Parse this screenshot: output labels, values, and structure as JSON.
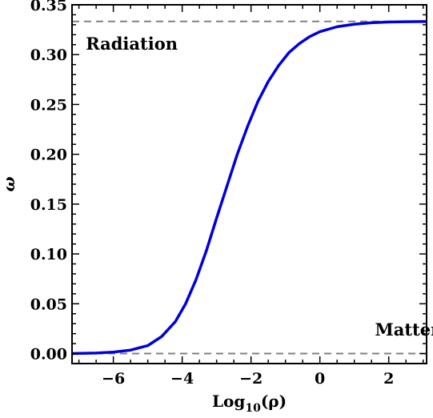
{
  "chart_data": {
    "type": "line",
    "title": "",
    "xlabel": "Log10(ρ)",
    "ylabel": "ω",
    "xlim": [
      -7.2,
      3.1
    ],
    "ylim": [
      -0.01,
      0.35
    ],
    "x_ticks": [
      -6,
      -4,
      -2,
      0,
      2
    ],
    "x_tick_labels": [
      "−6",
      "−4",
      "−2",
      "0",
      "2"
    ],
    "y_ticks": [
      0.0,
      0.05,
      0.1,
      0.15,
      0.2,
      0.25,
      0.3,
      0.35
    ],
    "y_tick_labels": [
      "0.00",
      "0.05",
      "0.10",
      "0.15",
      "0.20",
      "0.25",
      "0.30",
      "0.35"
    ],
    "grid": false,
    "series": [
      {
        "name": "",
        "color": "#0000dd",
        "style": "solid",
        "x": [
          -7.2,
          -6.5,
          -6.0,
          -5.5,
          -5.0,
          -4.6,
          -4.2,
          -3.9,
          -3.6,
          -3.3,
          -3.0,
          -2.7,
          -2.4,
          -2.1,
          -1.8,
          -1.5,
          -1.2,
          -0.9,
          -0.6,
          -0.3,
          0.0,
          0.5,
          1.0,
          1.5,
          2.0,
          2.5,
          3.1
        ],
        "y": [
          0.0,
          0.0005,
          0.0015,
          0.0035,
          0.008,
          0.017,
          0.032,
          0.05,
          0.074,
          0.103,
          0.136,
          0.168,
          0.2,
          0.228,
          0.253,
          0.273,
          0.289,
          0.302,
          0.311,
          0.318,
          0.323,
          0.328,
          0.3305,
          0.332,
          0.3327,
          0.333,
          0.3332
        ]
      },
      {
        "name": "",
        "color": "#808080",
        "style": "dashed",
        "x": [
          -7.2,
          3.1
        ],
        "y": [
          0.3333,
          0.3333
        ]
      },
      {
        "name": "",
        "color": "#808080",
        "style": "dashed",
        "x": [
          -7.2,
          3.1
        ],
        "y": [
          0.0,
          0.0
        ]
      }
    ],
    "annotations": [
      {
        "text": "Radiation",
        "x": -6.8,
        "y": 0.305
      },
      {
        "text": "Matter",
        "x": 1.6,
        "y": 0.018
      }
    ]
  }
}
